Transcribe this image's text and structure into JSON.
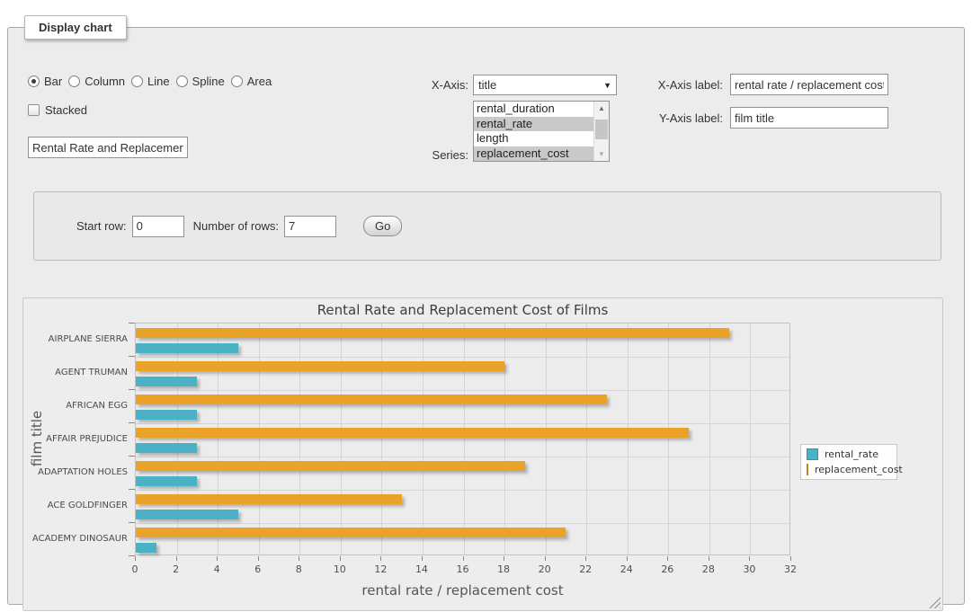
{
  "panel": {
    "title": "Display chart"
  },
  "chart_type_options": [
    {
      "label": "Bar",
      "checked": true
    },
    {
      "label": "Column",
      "checked": false
    },
    {
      "label": "Line",
      "checked": false
    },
    {
      "label": "Spline",
      "checked": false
    },
    {
      "label": "Area",
      "checked": false
    }
  ],
  "stacked": {
    "label": "Stacked",
    "checked": false
  },
  "chart_title_input": {
    "value": "Rental Rate and Replacement Cost of Films"
  },
  "x_axis_select": {
    "label": "X-Axis:",
    "selected": "title"
  },
  "series_select": {
    "label": "Series:",
    "options": [
      {
        "label": "rental_duration",
        "selected": false
      },
      {
        "label": "rental_rate",
        "selected": true
      },
      {
        "label": "length",
        "selected": false
      },
      {
        "label": "replacement_cost",
        "selected": true
      }
    ]
  },
  "x_axis_label_input": {
    "label": "X-Axis label:",
    "value": "rental rate / replacement cost"
  },
  "y_axis_label_input": {
    "label": "Y-Axis label:",
    "value": "film title"
  },
  "row_controls": {
    "start_row_label": "Start row:",
    "start_row_value": "0",
    "num_rows_label": "Number of rows:",
    "num_rows_value": "7",
    "go_button_label": "Go"
  },
  "chart_data": {
    "type": "bar",
    "orientation": "horizontal",
    "title": "Rental Rate and Replacement Cost of Films",
    "xlabel": "rental rate / replacement cost",
    "ylabel": "film title",
    "categories": [
      "AIRPLANE SIERRA",
      "AGENT TRUMAN",
      "AFRICAN EGG",
      "AFFAIR PREJUDICE",
      "ADAPTATION HOLES",
      "ACE GOLDFINGER",
      "ACADEMY DINOSAUR"
    ],
    "series": [
      {
        "name": "rental_rate",
        "color": "#4bb2c5",
        "values": [
          4.99,
          2.99,
          2.99,
          2.99,
          2.99,
          4.99,
          0.99
        ]
      },
      {
        "name": "replacement_cost",
        "color": "#eaa228",
        "values": [
          28.99,
          17.99,
          22.99,
          26.99,
          18.99,
          12.99,
          20.99
        ]
      }
    ],
    "xlim": [
      0,
      32
    ],
    "xticks": [
      0,
      2,
      4,
      6,
      8,
      10,
      12,
      14,
      16,
      18,
      20,
      22,
      24,
      26,
      28,
      30,
      32
    ],
    "legend_position": "right",
    "grid": true
  }
}
